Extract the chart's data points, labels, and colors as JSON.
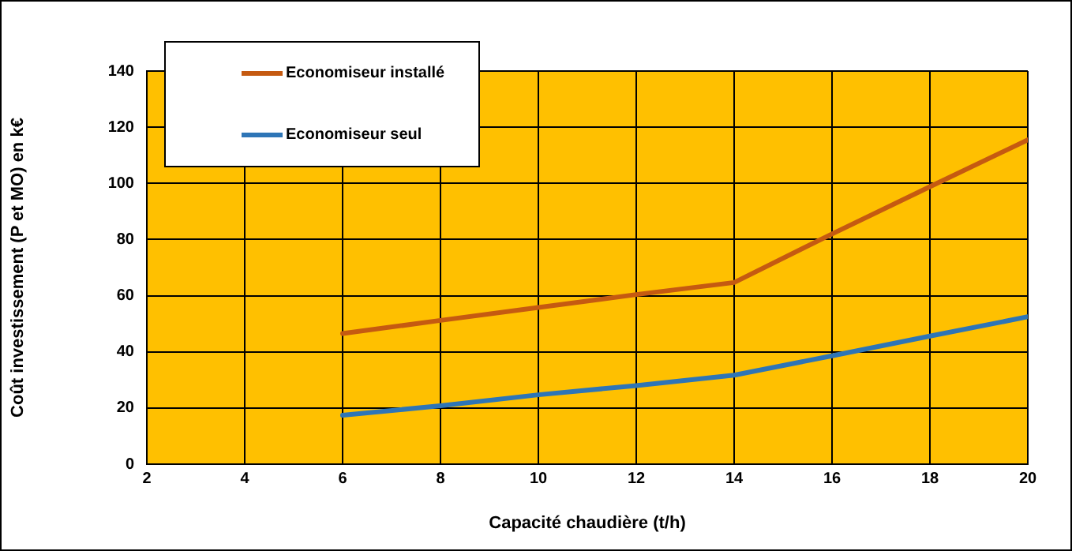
{
  "chart_data": {
    "type": "line",
    "xlabel": "Capacité chaudière (t/h)",
    "ylabel": "Coût investissement (P et MO) en k€",
    "x": [
      6,
      8,
      10,
      12,
      14,
      16,
      18,
      20
    ],
    "series": [
      {
        "name": "Economiseur installé",
        "color": "#c55a11",
        "values": [
          46.5,
          51.2,
          55.8,
          60.4,
          64.7,
          82,
          98.8,
          115.5
        ]
      },
      {
        "name": "Economiseur seul",
        "color": "#2e75b6",
        "values": [
          17.4,
          20.8,
          24.7,
          28,
          31.7,
          38.6,
          45.6,
          52.5
        ]
      }
    ],
    "xlim": [
      2,
      20
    ],
    "xticks": [
      2,
      4,
      6,
      8,
      10,
      12,
      14,
      16,
      18,
      20
    ],
    "ylim": [
      0,
      140
    ],
    "yticks": [
      0,
      20,
      40,
      60,
      80,
      100,
      120,
      140
    ],
    "grid": true,
    "legend": "top left",
    "marker": "none",
    "line_style": "solid"
  }
}
